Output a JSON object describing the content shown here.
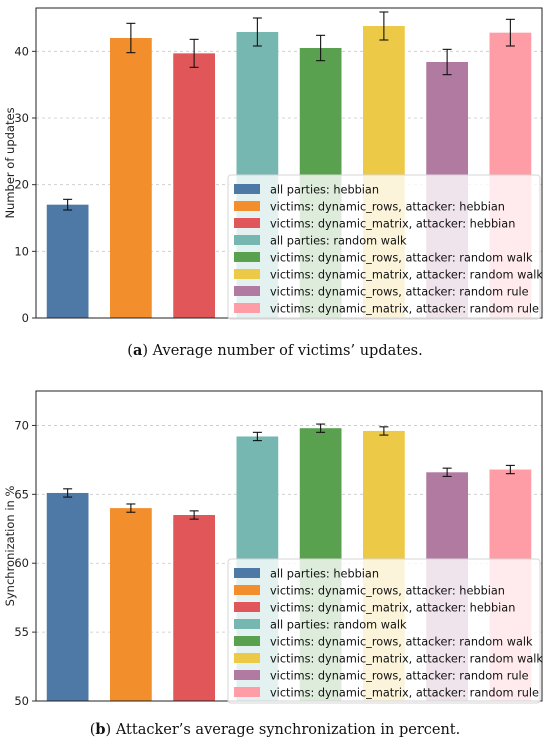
{
  "chart_data": [
    {
      "type": "bar",
      "caption_letter": "a",
      "caption_text": " Average number of victims’ updates.",
      "ylabel": "Number of updates",
      "ylim": [
        0,
        46.5
      ],
      "yticks": [
        0,
        10,
        20,
        30,
        40
      ],
      "grid": "horizontal dashed",
      "legend_position": "lower-right",
      "series": [
        {
          "name": "all parties: hebbian",
          "value": 17.0,
          "err": 0.8,
          "color": "#4e79a7"
        },
        {
          "name": "victims: dynamic_rows, attacker: hebbian",
          "value": 42.0,
          "err": 2.2,
          "color": "#f28e2b"
        },
        {
          "name": "victims: dynamic_matrix, attacker: hebbian",
          "value": 39.7,
          "err": 2.1,
          "color": "#e15759"
        },
        {
          "name": "all parties: random walk",
          "value": 42.9,
          "err": 2.1,
          "color": "#76b7b2"
        },
        {
          "name": "victims: dynamic_rows, attacker: random walk",
          "value": 40.5,
          "err": 1.9,
          "color": "#59a14f"
        },
        {
          "name": "victims: dynamic_matrix, attacker: random walk",
          "value": 43.8,
          "err": 2.1,
          "color": "#edc948"
        },
        {
          "name": "victims: dynamic_rows, attacker: random rule",
          "value": 38.4,
          "err": 1.9,
          "color": "#b07aa1"
        },
        {
          "name": "victims: dynamic_matrix, attacker: random rule",
          "value": 42.8,
          "err": 2.0,
          "color": "#ff9da7"
        }
      ]
    },
    {
      "type": "bar",
      "caption_letter": "b",
      "caption_text": " Attacker’s average synchronization in percent.",
      "ylabel": "Synchronization in %",
      "ylim": [
        50,
        72.5
      ],
      "yticks": [
        50,
        55,
        60,
        65,
        70
      ],
      "grid": "horizontal dashed",
      "legend_position": "lower-right",
      "series": [
        {
          "name": "all parties: hebbian",
          "value": 65.1,
          "err": 0.3,
          "color": "#4e79a7"
        },
        {
          "name": "victims: dynamic_rows, attacker: hebbian",
          "value": 64.0,
          "err": 0.3,
          "color": "#f28e2b"
        },
        {
          "name": "victims: dynamic_matrix, attacker: hebbian",
          "value": 63.5,
          "err": 0.3,
          "color": "#e15759"
        },
        {
          "name": "all parties: random walk",
          "value": 69.2,
          "err": 0.3,
          "color": "#76b7b2"
        },
        {
          "name": "victims: dynamic_rows, attacker: random walk",
          "value": 69.8,
          "err": 0.3,
          "color": "#59a14f"
        },
        {
          "name": "victims: dynamic_matrix, attacker: random walk",
          "value": 69.6,
          "err": 0.3,
          "color": "#edc948"
        },
        {
          "name": "victims: dynamic_rows, attacker: random rule",
          "value": 66.6,
          "err": 0.3,
          "color": "#b07aa1"
        },
        {
          "name": "victims: dynamic_matrix, attacker: random rule",
          "value": 66.8,
          "err": 0.3,
          "color": "#ff9da7"
        }
      ]
    }
  ]
}
